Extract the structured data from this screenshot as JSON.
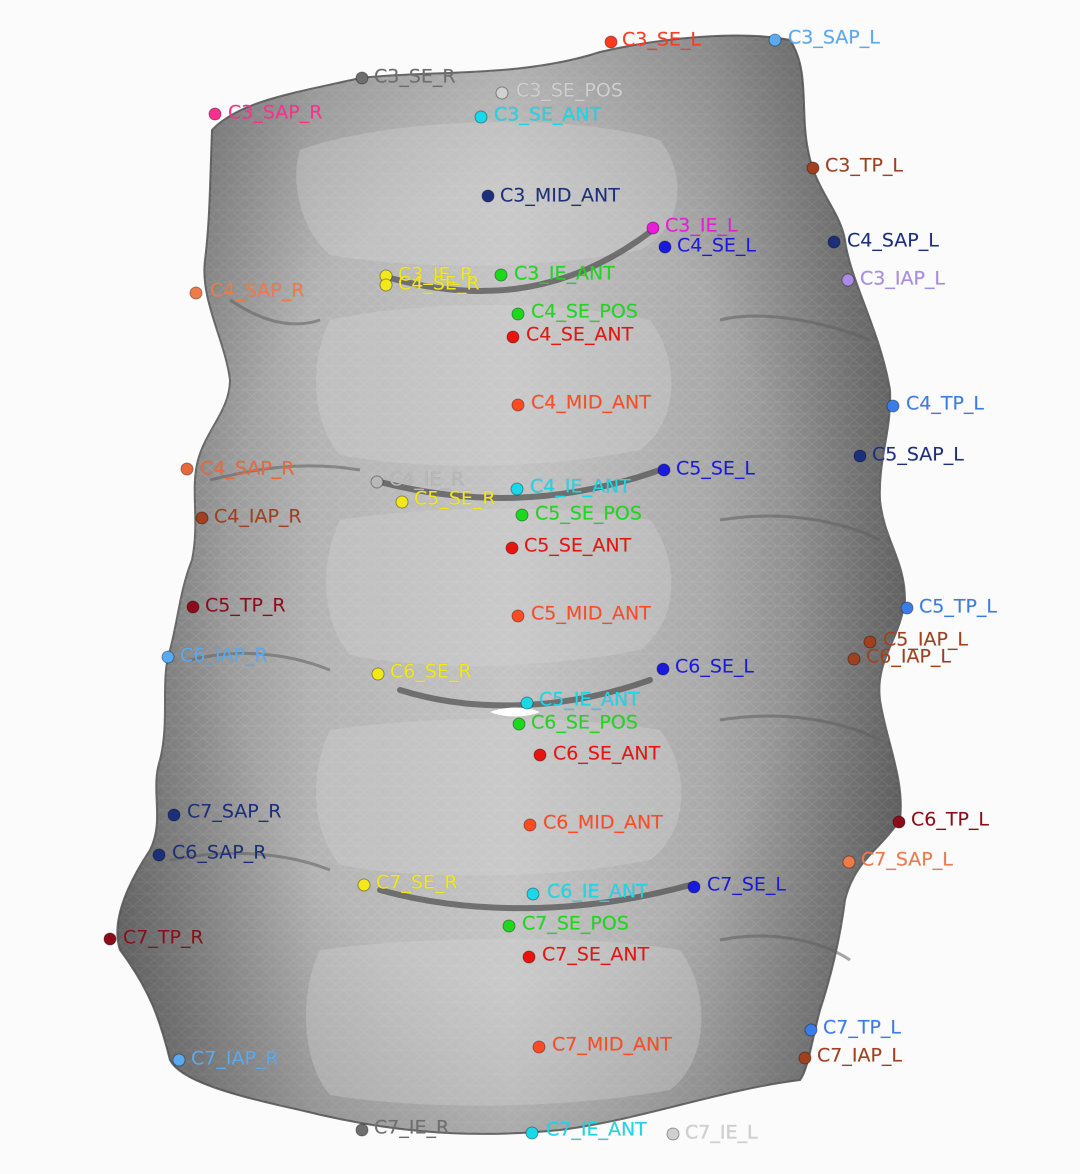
{
  "scene": {
    "background": "#fbfbfb",
    "bone_color": "#a7a7a7",
    "bone_dark": "#7b7b7b",
    "bone_light": "#d8d8d8"
  },
  "landmarks": [
    {
      "label": "C3_SE_L",
      "color": "#ff3b1f"
    },
    {
      "label": "C3_SAP_L",
      "color": "#5aaaf0"
    },
    {
      "label": "C3_SE_R",
      "color": "#6e6e6e"
    },
    {
      "label": "C3_SE_POS",
      "color": "#d0d0d0"
    },
    {
      "label": "C3_SAP_R",
      "color": "#ff2f8f"
    },
    {
      "label": "C3_SE_ANT",
      "color": "#19d8e8"
    },
    {
      "label": "C3_TP_L",
      "color": "#a0401e"
    },
    {
      "label": "C3_MID_ANT",
      "color": "#1c2f7a"
    },
    {
      "label": "C3_IE_L",
      "color": "#e81cd8"
    },
    {
      "label": "C4_SE_L",
      "color": "#1a1adf"
    },
    {
      "label": "C4_SAP_L",
      "color": "#1c2f7a"
    },
    {
      "label": "C3_IAP_L",
      "color": "#a88ce8"
    },
    {
      "label": "C3_IE_R",
      "color": "#f2e81a"
    },
    {
      "label": "C4_SE_R",
      "color": "#f2e81a"
    },
    {
      "label": "C3_IE_ANT",
      "color": "#1ed81e"
    },
    {
      "label": "C4_SAP_R",
      "color": "#f07a4a"
    },
    {
      "label": "C4_SE_POS",
      "color": "#1ed81e"
    },
    {
      "label": "C4_SE_ANT",
      "color": "#e8140f"
    },
    {
      "label": "C4_MID_ANT",
      "color": "#ff4b24"
    },
    {
      "label": "C4_TP_L",
      "color": "#3b7de8"
    },
    {
      "label": "C5_SAP_L",
      "color": "#1c2f7a"
    },
    {
      "label": "C4_SAP_R",
      "color": "#e8693c"
    },
    {
      "label": "C4_IE_R",
      "color": "#b8b8b8"
    },
    {
      "label": "C4_IE_ANT",
      "color": "#19d8e8"
    },
    {
      "label": "C5_SE_L",
      "color": "#1a1adf"
    },
    {
      "label": "C5_SE_R",
      "color": "#f2e81a"
    },
    {
      "label": "C5_SE_POS",
      "color": "#1ed81e"
    },
    {
      "label": "C4_IAP_R",
      "color": "#a0401e"
    },
    {
      "label": "C5_SE_ANT",
      "color": "#e8140f"
    },
    {
      "label": "C5_TP_R",
      "color": "#8b0d1a"
    },
    {
      "label": "C5_MID_ANT",
      "color": "#ff4b24"
    },
    {
      "label": "C5_TP_L",
      "color": "#3b7de8"
    },
    {
      "label": "C5_IAP_L",
      "color": "#a0401e"
    },
    {
      "label": "C6_IAP_R",
      "color": "#5aaaf0"
    },
    {
      "label": "C6_IAP_L",
      "color": "#a0401e"
    },
    {
      "label": "C6_SE_L",
      "color": "#1a1adf"
    },
    {
      "label": "C6_SE_R",
      "color": "#f2e81a"
    },
    {
      "label": "C5_IE_ANT",
      "color": "#19d8e8"
    },
    {
      "label": "C6_SE_POS",
      "color": "#1ed81e"
    },
    {
      "label": "C6_SE_ANT",
      "color": "#e8140f"
    },
    {
      "label": "C7_SAP_R",
      "color": "#1c2f7a"
    },
    {
      "label": "C6_MID_ANT",
      "color": "#ff4b24"
    },
    {
      "label": "C6_TP_L",
      "color": "#8b0d1a"
    },
    {
      "label": "C6_SAP_R",
      "color": "#1c2f7a"
    },
    {
      "label": "C7_SAP_L",
      "color": "#f07a4a"
    },
    {
      "label": "C7_SE_R",
      "color": "#f2e81a"
    },
    {
      "label": "C6_IE_ANT",
      "color": "#19d8e8"
    },
    {
      "label": "C7_SE_L",
      "color": "#1a1adf"
    },
    {
      "label": "C7_SE_POS",
      "color": "#1ed81e"
    },
    {
      "label": "C7_TP_R",
      "color": "#8b0d1a"
    },
    {
      "label": "C7_SE_ANT",
      "color": "#e8140f"
    },
    {
      "label": "C7_TP_L",
      "color": "#3b7de8"
    },
    {
      "label": "C7_MID_ANT",
      "color": "#ff4b24"
    },
    {
      "label": "C7_IAP_L",
      "color": "#a0401e"
    },
    {
      "label": "C7_IAP_R",
      "color": "#5aaaf0"
    },
    {
      "label": "C7_IE_R",
      "color": "#6e6e6e"
    },
    {
      "label": "C7_IE_ANT",
      "color": "#19d8e8"
    },
    {
      "label": "C7_IE_L",
      "color": "#d0d0d0"
    }
  ]
}
